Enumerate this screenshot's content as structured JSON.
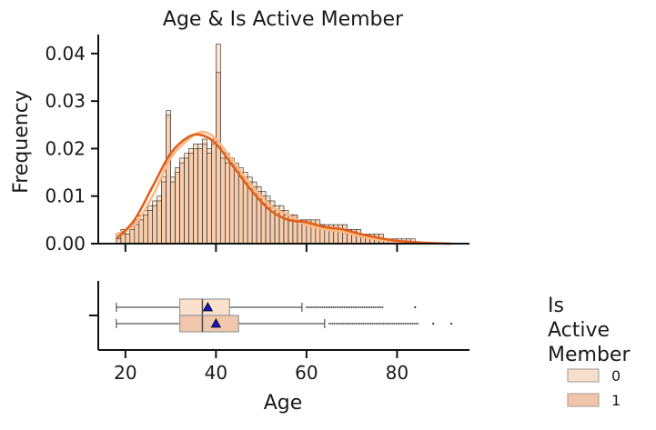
{
  "chart_data": {
    "type": "histogram",
    "title": "Age & Is Active Member",
    "xlabel": "Age",
    "ylabel": "Frequency",
    "xlim": [
      14,
      96
    ],
    "ylim": [
      0,
      0.044
    ],
    "xticks": [
      20,
      40,
      60,
      80
    ],
    "yticks": [
      0.0,
      0.01,
      0.02,
      0.03,
      0.04
    ],
    "ytick_labels": [
      "0.00",
      "0.01",
      "0.02",
      "0.03",
      "0.04"
    ],
    "bin_edges_start": 18,
    "bin_width": 1,
    "legend": {
      "title_lines": [
        "Is",
        "Active",
        "Member"
      ],
      "placement": "right",
      "entries": [
        {
          "label": "0",
          "color": "#f6dfcc"
        },
        {
          "label": "1",
          "color": "#f0c4a8"
        }
      ]
    },
    "series": [
      {
        "name": "0",
        "hist_color": "#fbe3cf",
        "kde_color": "#fdb882",
        "densities": [
          0.002,
          0.003,
          0.003,
          0.004,
          0.005,
          0.006,
          0.007,
          0.008,
          0.009,
          0.01,
          0.014,
          0.028,
          0.014,
          0.016,
          0.018,
          0.019,
          0.02,
          0.021,
          0.021,
          0.022,
          0.02,
          0.022,
          0.042,
          0.02,
          0.019,
          0.018,
          0.017,
          0.016,
          0.015,
          0.014,
          0.013,
          0.012,
          0.011,
          0.01,
          0.009,
          0.008,
          0.008,
          0.007,
          0.006,
          0.006,
          0.005,
          0.005,
          0.005,
          0.004,
          0.004,
          0.004,
          0.003,
          0.003,
          0.003,
          0.003,
          0.002,
          0.002,
          0.002,
          0.002,
          0.002,
          0.001,
          0.001,
          0.001,
          0.001,
          0.001,
          0.0,
          0.0,
          0.0,
          0.0,
          0.0,
          0.001,
          0.0,
          0.0,
          0.0,
          0.0,
          0.0,
          0.0,
          0.0,
          0.0
        ],
        "kde": [
          [
            18,
            0.002
          ],
          [
            22,
            0.004
          ],
          [
            26,
            0.01
          ],
          [
            30,
            0.018
          ],
          [
            34,
            0.022
          ],
          [
            37,
            0.0235
          ],
          [
            40,
            0.022
          ],
          [
            44,
            0.017
          ],
          [
            48,
            0.012
          ],
          [
            52,
            0.008
          ],
          [
            56,
            0.006
          ],
          [
            60,
            0.004
          ],
          [
            64,
            0.003
          ],
          [
            68,
            0.0025
          ],
          [
            72,
            0.0015
          ],
          [
            76,
            0.0008
          ],
          [
            80,
            0.0004
          ],
          [
            84,
            0.0002
          ],
          [
            88,
            0.0
          ]
        ],
        "box": {
          "whisker_low": 18,
          "q1": 32,
          "median": 37,
          "q3": 43,
          "whisker_high": 59,
          "mean": 38.2,
          "flier_start": 60,
          "flier_end": 77,
          "extra_fliers": [
            84
          ]
        }
      },
      {
        "name": "1",
        "hist_color": "#f7c6a1",
        "kde_color": "#e0601a",
        "densities": [
          0.001,
          0.002,
          0.002,
          0.003,
          0.004,
          0.005,
          0.006,
          0.007,
          0.008,
          0.009,
          0.013,
          0.027,
          0.013,
          0.015,
          0.017,
          0.018,
          0.019,
          0.02,
          0.02,
          0.021,
          0.019,
          0.021,
          0.036,
          0.018,
          0.017,
          0.017,
          0.016,
          0.015,
          0.014,
          0.013,
          0.012,
          0.011,
          0.01,
          0.009,
          0.008,
          0.007,
          0.007,
          0.006,
          0.006,
          0.006,
          0.005,
          0.005,
          0.005,
          0.005,
          0.005,
          0.004,
          0.004,
          0.004,
          0.004,
          0.004,
          0.004,
          0.003,
          0.003,
          0.003,
          0.002,
          0.002,
          0.002,
          0.002,
          0.002,
          0.001,
          0.001,
          0.001,
          0.001,
          0.001,
          0.001,
          0.0,
          0.0,
          0.0,
          0.0,
          0.0,
          0.0,
          0.0,
          0.0,
          0.0
        ],
        "kde": [
          [
            18,
            0.001
          ],
          [
            22,
            0.005
          ],
          [
            26,
            0.012
          ],
          [
            30,
            0.019
          ],
          [
            34,
            0.0225
          ],
          [
            37,
            0.0228
          ],
          [
            40,
            0.021
          ],
          [
            44,
            0.016
          ],
          [
            48,
            0.011
          ],
          [
            52,
            0.007
          ],
          [
            56,
            0.005
          ],
          [
            60,
            0.0045
          ],
          [
            64,
            0.0035
          ],
          [
            68,
            0.003
          ],
          [
            72,
            0.002
          ],
          [
            76,
            0.0012
          ],
          [
            80,
            0.0006
          ],
          [
            84,
            0.0003
          ],
          [
            88,
            0.0001
          ],
          [
            92,
            0.0
          ]
        ],
        "box": {
          "whisker_low": 18,
          "q1": 32,
          "median": 37,
          "q3": 45,
          "whisker_high": 64,
          "mean": 40.0,
          "flier_start": 65,
          "flier_end": 85,
          "extra_fliers": [
            88,
            92
          ]
        }
      }
    ]
  }
}
